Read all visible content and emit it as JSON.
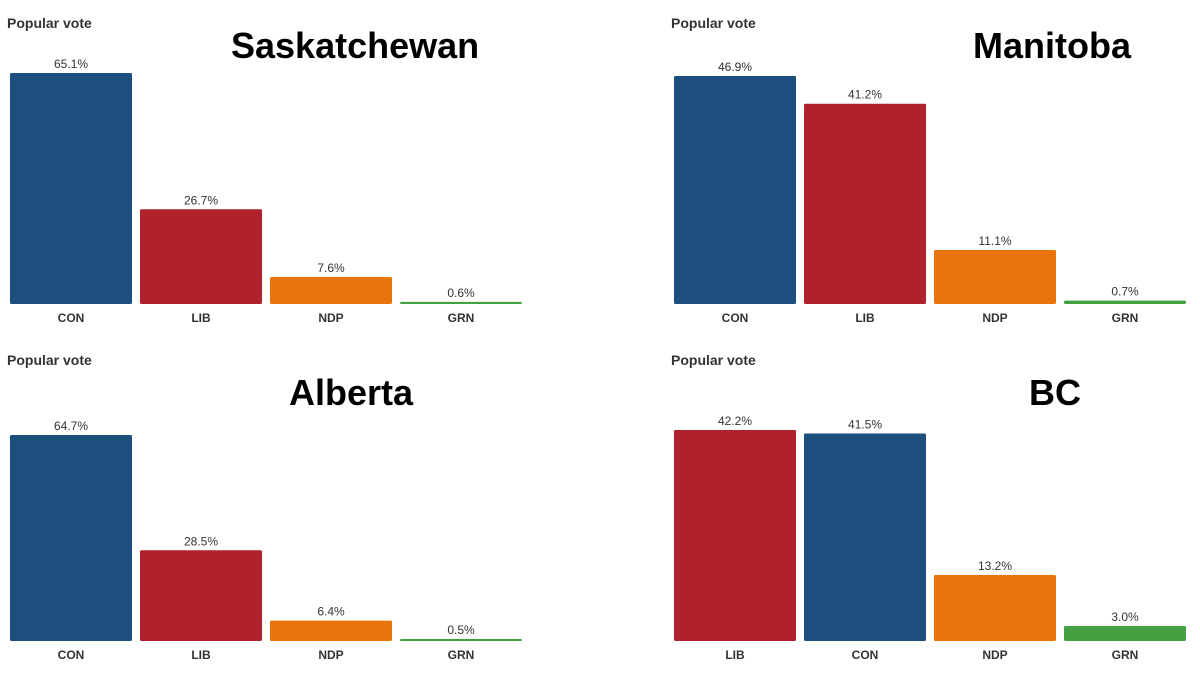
{
  "colors": {
    "CON": "#1c4f7e",
    "LIB": "#b0212b",
    "NDP": "#e8740b",
    "GRN": "#44a040"
  },
  "chart_data": [
    {
      "type": "bar",
      "heading": "Popular vote",
      "title": "Saskatchewan",
      "categories": [
        "CON",
        "LIB",
        "NDP",
        "GRN"
      ],
      "values": [
        65.1,
        26.7,
        7.6,
        0.6
      ],
      "value_labels": [
        "65.1%",
        "26.7%",
        "7.6%",
        "0.6%"
      ],
      "ylim": [
        0,
        65.1
      ]
    },
    {
      "type": "bar",
      "heading": "Popular vote",
      "title": "Manitoba",
      "categories": [
        "CON",
        "LIB",
        "NDP",
        "GRN"
      ],
      "values": [
        46.9,
        41.2,
        11.1,
        0.7
      ],
      "value_labels": [
        "46.9%",
        "41.2%",
        "11.1%",
        "0.7%"
      ],
      "ylim": [
        0,
        46.9
      ]
    },
    {
      "type": "bar",
      "heading": "Popular vote",
      "title": "Alberta",
      "categories": [
        "CON",
        "LIB",
        "NDP",
        "GRN"
      ],
      "values": [
        64.7,
        28.5,
        6.4,
        0.5
      ],
      "value_labels": [
        "64.7%",
        "28.5%",
        "6.4%",
        "0.5%"
      ],
      "ylim": [
        0,
        64.7
      ]
    },
    {
      "type": "bar",
      "heading": "Popular vote",
      "title": "BC",
      "categories": [
        "LIB",
        "CON",
        "NDP",
        "GRN"
      ],
      "values": [
        42.2,
        41.5,
        13.2,
        3.0
      ],
      "value_labels": [
        "42.2%",
        "41.5%",
        "13.2%",
        "3.0%"
      ],
      "ylim": [
        0,
        42.2
      ]
    }
  ]
}
